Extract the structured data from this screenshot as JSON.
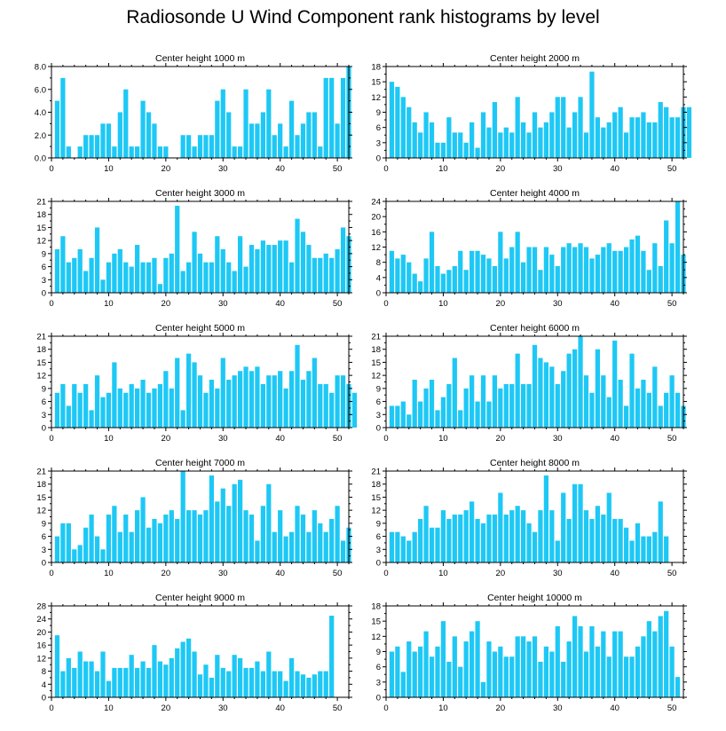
{
  "title": "Radiosonde U Wind Component rank histograms by level",
  "bar_color": "#1EC8F5",
  "chart_data": [
    {
      "type": "bar",
      "title": "Center height 1000 m",
      "xlim": [
        0,
        52
      ],
      "ylim": [
        0,
        8
      ],
      "yticks": [
        0,
        2,
        4,
        6,
        8
      ],
      "ytick_labels": [
        "0.0",
        "2.0",
        "4.0",
        "6.0",
        "8.0"
      ],
      "xticks": [
        0,
        10,
        20,
        30,
        40,
        50
      ],
      "values": [
        5,
        7,
        1,
        0,
        1,
        2,
        2,
        2,
        3,
        3,
        1,
        4,
        6,
        1,
        1,
        5,
        4,
        3,
        1,
        1,
        0,
        0,
        2,
        2,
        1,
        2,
        2,
        2,
        5,
        6,
        4,
        1,
        1,
        6,
        3,
        3,
        4,
        6,
        2,
        3,
        1,
        5,
        2,
        3,
        4,
        4,
        1,
        7,
        7,
        3,
        7,
        8
      ]
    },
    {
      "type": "bar",
      "title": "Center height 2000 m",
      "xlim": [
        0,
        52
      ],
      "ylim": [
        0,
        18
      ],
      "yticks": [
        0,
        3,
        6,
        9,
        12,
        15,
        18
      ],
      "ytick_labels": [
        "0",
        "3",
        "6",
        "9",
        "12",
        "15",
        "18"
      ],
      "xticks": [
        0,
        10,
        20,
        30,
        40,
        50
      ],
      "values": [
        15,
        14,
        12,
        10,
        7,
        5,
        9,
        7,
        3,
        3,
        8,
        5,
        5,
        3,
        7,
        2,
        9,
        6,
        11,
        5,
        6,
        5,
        12,
        7,
        5,
        9,
        6,
        7,
        9,
        12,
        12,
        6,
        9,
        12,
        5,
        17,
        8,
        6,
        7,
        9,
        10,
        5,
        8,
        8,
        9,
        7,
        7,
        11,
        10,
        8,
        8,
        10,
        10
      ]
    },
    {
      "type": "bar",
      "title": "Center height 3000 m",
      "xlim": [
        0,
        52
      ],
      "ylim": [
        0,
        21
      ],
      "yticks": [
        0,
        3,
        6,
        9,
        12,
        15,
        18,
        21
      ],
      "ytick_labels": [
        "0",
        "3",
        "6",
        "9",
        "12",
        "15",
        "18",
        "21"
      ],
      "xticks": [
        0,
        10,
        20,
        30,
        40,
        50
      ],
      "values": [
        10,
        13,
        7,
        8,
        10,
        5,
        8,
        15,
        3,
        7,
        9,
        10,
        7,
        6,
        11,
        7,
        7,
        8,
        2,
        8,
        9,
        20,
        5,
        7,
        14,
        9,
        7,
        7,
        13,
        10,
        7,
        5,
        13,
        6,
        11,
        10,
        12,
        11,
        11,
        12,
        12,
        7,
        17,
        14,
        11,
        8,
        8,
        9,
        8,
        10,
        15,
        13
      ]
    },
    {
      "type": "bar",
      "title": "Center height 4000 m",
      "xlim": [
        0,
        52
      ],
      "ylim": [
        0,
        24
      ],
      "yticks": [
        0,
        4,
        8,
        12,
        16,
        20,
        24
      ],
      "ytick_labels": [
        "0",
        "4",
        "8",
        "12",
        "16",
        "20",
        "24"
      ],
      "xticks": [
        0,
        10,
        20,
        30,
        40,
        50
      ],
      "values": [
        11,
        9,
        10,
        8,
        5,
        3,
        9,
        16,
        7,
        5,
        6,
        7,
        11,
        6,
        11,
        11,
        10,
        9,
        7,
        16,
        9,
        12,
        16,
        8,
        12,
        12,
        6,
        12,
        10,
        7,
        12,
        13,
        12,
        13,
        12,
        9,
        10,
        12,
        13,
        11,
        11,
        12,
        14,
        15,
        11,
        6,
        13,
        7,
        19,
        13,
        24,
        10
      ]
    },
    {
      "type": "bar",
      "title": "Center height 5000 m",
      "xlim": [
        0,
        52
      ],
      "ylim": [
        0,
        21
      ],
      "yticks": [
        0,
        3,
        6,
        9,
        12,
        15,
        18,
        21
      ],
      "ytick_labels": [
        "0",
        "3",
        "6",
        "9",
        "12",
        "15",
        "18",
        "21"
      ],
      "xticks": [
        0,
        10,
        20,
        30,
        40,
        50
      ],
      "values": [
        8,
        10,
        5,
        10,
        8,
        10,
        4,
        12,
        7,
        8,
        15,
        9,
        8,
        10,
        9,
        11,
        8,
        9,
        10,
        13,
        9,
        16,
        4,
        17,
        15,
        12,
        8,
        11,
        9,
        16,
        11,
        12,
        13,
        14,
        13,
        14,
        10,
        12,
        12,
        13,
        9,
        13,
        19,
        11,
        13,
        16,
        10,
        10,
        8,
        12,
        12,
        10,
        8
      ]
    },
    {
      "type": "bar",
      "title": "Center height 6000 m",
      "xlim": [
        0,
        52
      ],
      "ylim": [
        0,
        21
      ],
      "yticks": [
        0,
        3,
        6,
        9,
        12,
        15,
        18,
        21
      ],
      "ytick_labels": [
        "0",
        "3",
        "6",
        "9",
        "12",
        "15",
        "18",
        "21"
      ],
      "xticks": [
        0,
        10,
        20,
        30,
        40,
        50
      ],
      "values": [
        5,
        5,
        6,
        3,
        11,
        6,
        9,
        11,
        4,
        7,
        10,
        16,
        4,
        9,
        12,
        6,
        12,
        6,
        12,
        9,
        10,
        10,
        17,
        10,
        10,
        19,
        16,
        15,
        14,
        10,
        13,
        17,
        18,
        21,
        12,
        8,
        18,
        12,
        7,
        20,
        11,
        5,
        17,
        9,
        11,
        8,
        14,
        5,
        8,
        12,
        8,
        5
      ]
    },
    {
      "type": "bar",
      "title": "Center height 7000 m",
      "xlim": [
        0,
        52
      ],
      "ylim": [
        0,
        21
      ],
      "yticks": [
        0,
        3,
        6,
        9,
        12,
        15,
        18,
        21
      ],
      "ytick_labels": [
        "0",
        "3",
        "6",
        "9",
        "12",
        "15",
        "18",
        "21"
      ],
      "xticks": [
        0,
        10,
        20,
        30,
        40,
        50
      ],
      "values": [
        6,
        9,
        9,
        3,
        4,
        8,
        11,
        6,
        3,
        11,
        13,
        7,
        11,
        7,
        12,
        15,
        8,
        10,
        9,
        11,
        12,
        10,
        21,
        12,
        12,
        11,
        12,
        20,
        14,
        17,
        13,
        18,
        19,
        12,
        11,
        5,
        13,
        18,
        7,
        12,
        6,
        7,
        13,
        11,
        7,
        12,
        9,
        7,
        10,
        13,
        5,
        8
      ]
    },
    {
      "type": "bar",
      "title": "Center height 8000 m",
      "xlim": [
        0,
        52
      ],
      "ylim": [
        0,
        21
      ],
      "yticks": [
        0,
        3,
        6,
        9,
        12,
        15,
        18,
        21
      ],
      "ytick_labels": [
        "0",
        "3",
        "6",
        "9",
        "12",
        "15",
        "18",
        "21"
      ],
      "xticks": [
        0,
        10,
        20,
        30,
        40,
        50
      ],
      "values": [
        7,
        7,
        6,
        5,
        7,
        10,
        13,
        8,
        8,
        12,
        10,
        11,
        11,
        12,
        14,
        10,
        9,
        11,
        11,
        16,
        11,
        12,
        13,
        12,
        9,
        7,
        12,
        20,
        12,
        5,
        16,
        10,
        18,
        18,
        12,
        10,
        13,
        11,
        16,
        10,
        10,
        8,
        5,
        9,
        6,
        6,
        7,
        14,
        6
      ]
    },
    {
      "type": "bar",
      "title": "Center height 9000 m",
      "xlim": [
        0,
        52
      ],
      "ylim": [
        0,
        28
      ],
      "yticks": [
        0,
        4,
        8,
        12,
        16,
        20,
        24,
        28
      ],
      "ytick_labels": [
        "0",
        "4",
        "8",
        "12",
        "16",
        "20",
        "24",
        "28"
      ],
      "xticks": [
        0,
        10,
        20,
        30,
        40,
        50
      ],
      "values": [
        19,
        8,
        12,
        9,
        14,
        11,
        11,
        8,
        14,
        5,
        9,
        9,
        9,
        13,
        9,
        11,
        9,
        16,
        11,
        10,
        12,
        15,
        17,
        18,
        14,
        7,
        10,
        6,
        13,
        9,
        8,
        13,
        12,
        9,
        9,
        11,
        8,
        14,
        8,
        8,
        5,
        12,
        8,
        7,
        6,
        7,
        8,
        8,
        25
      ]
    },
    {
      "type": "bar",
      "title": "Center height 10000 m",
      "xlim": [
        0,
        52
      ],
      "ylim": [
        0,
        18
      ],
      "yticks": [
        0,
        3,
        6,
        9,
        12,
        15,
        18
      ],
      "ytick_labels": [
        "0",
        "3",
        "6",
        "9",
        "12",
        "15",
        "18"
      ],
      "xticks": [
        0,
        10,
        20,
        30,
        40,
        50
      ],
      "values": [
        9,
        10,
        5,
        11,
        9,
        10,
        13,
        8,
        10,
        15,
        7,
        12,
        6,
        11,
        13,
        15,
        3,
        11,
        9,
        10,
        8,
        8,
        12,
        12,
        11,
        12,
        7,
        10,
        9,
        14,
        7,
        11,
        16,
        14,
        9,
        14,
        10,
        13,
        8,
        13,
        13,
        8,
        8,
        10,
        12,
        15,
        13,
        16,
        17,
        10,
        4
      ]
    }
  ]
}
